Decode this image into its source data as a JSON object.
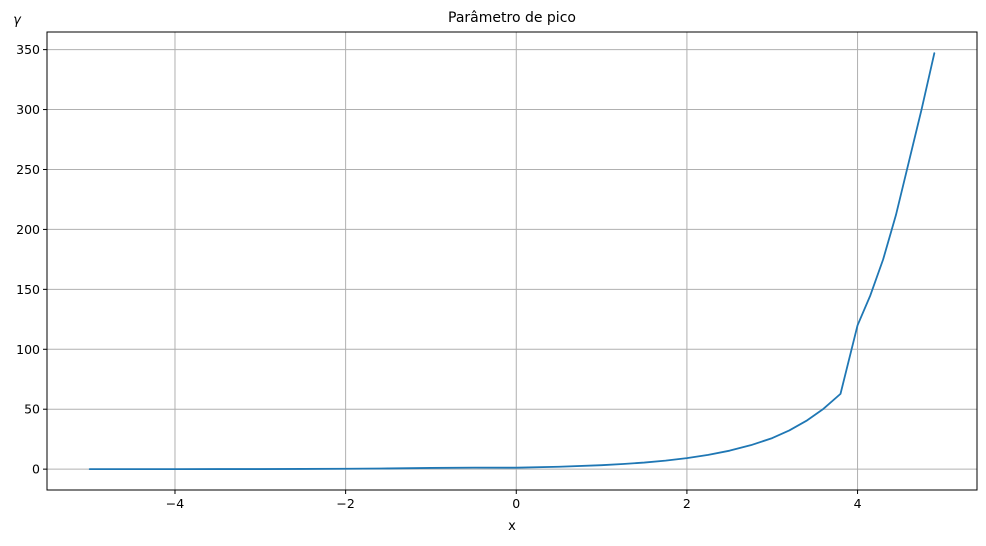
{
  "chart_data": {
    "type": "line",
    "title": "Parâmetro de pico",
    "xlabel": "x",
    "ylabel": "γ",
    "xlim": [
      -5.5,
      5.4
    ],
    "ylim": [
      -17.4,
      364.7
    ],
    "grid": true,
    "series_color": "#1f77b4",
    "x_ticks": [
      {
        "value": -4,
        "label": "−4"
      },
      {
        "value": -2,
        "label": "−2"
      },
      {
        "value": 0,
        "label": "0"
      },
      {
        "value": 2,
        "label": "2"
      },
      {
        "value": 4,
        "label": "4"
      }
    ],
    "y_ticks": [
      {
        "value": 0,
        "label": "0"
      },
      {
        "value": 50,
        "label": "50"
      },
      {
        "value": 100,
        "label": "100"
      },
      {
        "value": 150,
        "label": "150"
      },
      {
        "value": 200,
        "label": "200"
      },
      {
        "value": 250,
        "label": "250"
      },
      {
        "value": 300,
        "label": "300"
      },
      {
        "value": 350,
        "label": "350"
      }
    ],
    "series": [
      {
        "x": [
          -5.0,
          -4.5,
          -4.0,
          -3.5,
          -3.0,
          -2.5,
          -2.0,
          -1.5,
          -1.0,
          -0.5,
          0.0,
          0.5,
          1.0,
          1.25,
          1.5,
          1.75,
          2.0,
          2.25,
          2.5,
          2.75,
          3.0,
          3.2,
          3.4,
          3.6,
          3.8,
          4.0,
          4.15,
          4.3,
          4.45,
          4.6,
          4.75,
          4.9
        ],
        "y": [
          0.007,
          0.013,
          0.025,
          0.05,
          0.09,
          0.17,
          0.3,
          0.6,
          1.0,
          1.3,
          1.2,
          2.0,
          3.3,
          4.3,
          5.5,
          7.1,
          9.2,
          11.9,
          15.4,
          20.0,
          25.9,
          32.3,
          40.3,
          50.3,
          62.8,
          120.0,
          145.0,
          175.0,
          212.0,
          256.0,
          300.0,
          347.0
        ]
      }
    ]
  }
}
